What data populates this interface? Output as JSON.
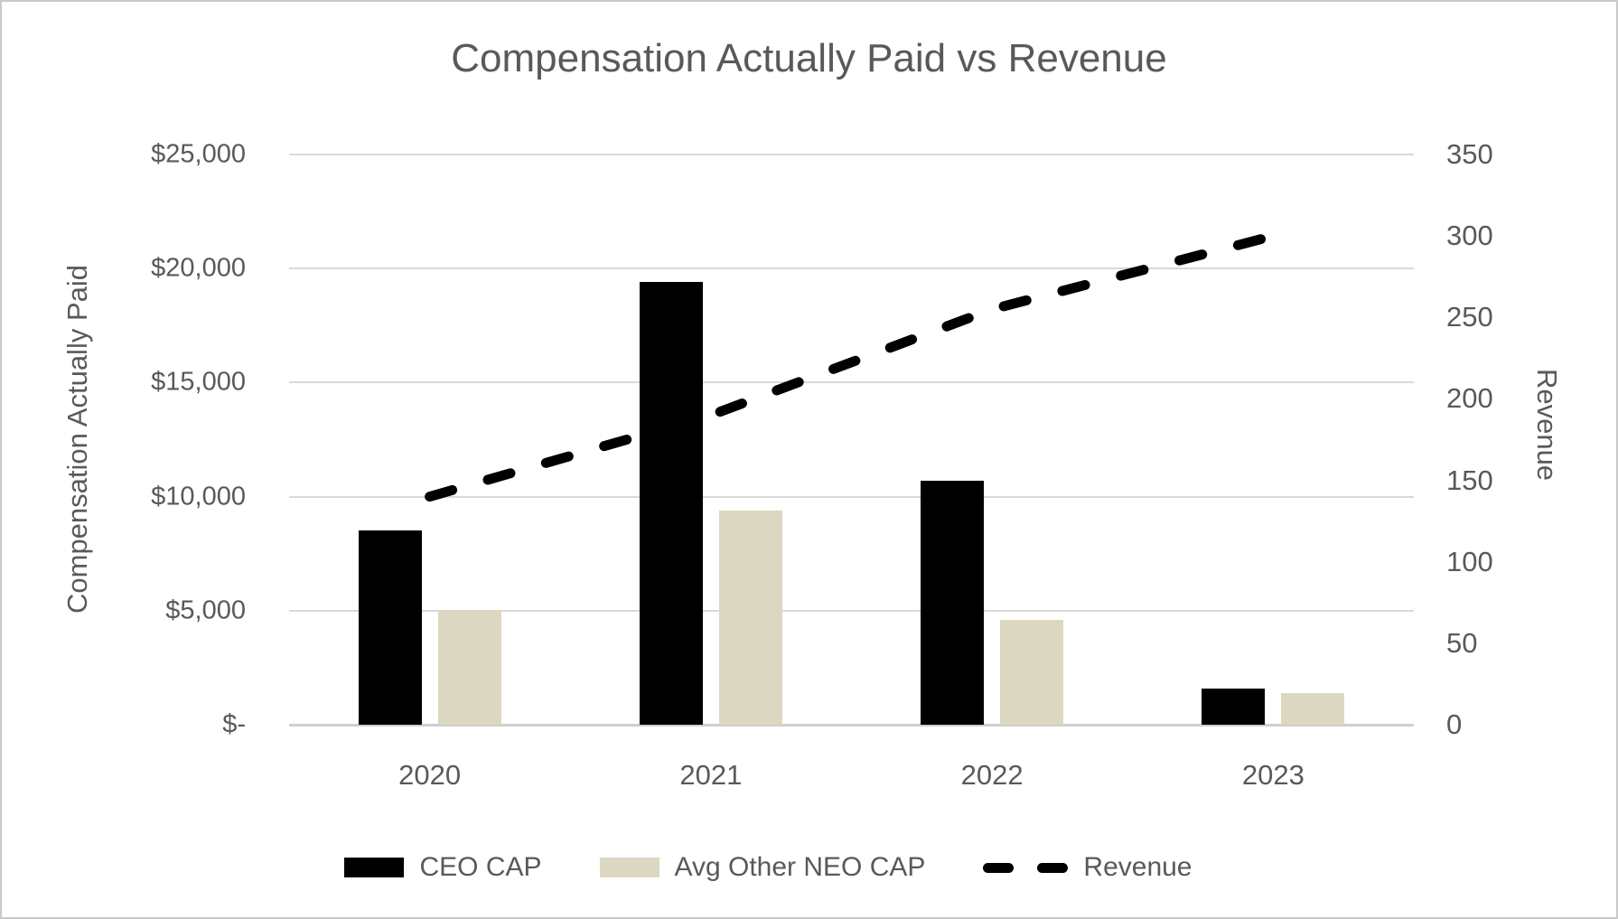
{
  "title": "Compensation Actually Paid vs Revenue",
  "left_axis": {
    "title": "Compensation Actually Paid",
    "tick_labels": [
      "$25,000",
      "$20,000",
      "$15,000",
      "$10,000",
      "$5,000",
      "$-"
    ],
    "min": 0,
    "max": 25000,
    "step": 5000
  },
  "right_axis": {
    "title": "Revenue",
    "tick_labels": [
      "350",
      "300",
      "250",
      "200",
      "150",
      "100",
      "50",
      "0"
    ],
    "min": 0,
    "max": 350,
    "step": 50
  },
  "x_axis": {
    "categories": [
      "2020",
      "2021",
      "2022",
      "2023"
    ]
  },
  "legend": [
    {
      "label": "CEO CAP",
      "type": "bar",
      "color": "#000000"
    },
    {
      "label": "Avg Other NEO CAP",
      "type": "bar",
      "color": "#dcd7c1"
    },
    {
      "label": "Revenue",
      "type": "line",
      "color": "#000000"
    }
  ],
  "colors": {
    "text": "#595959",
    "gridline": "#d9d9d9",
    "axis_line": "#d0cece",
    "ceo_bar": "#000000",
    "neo_bar": "#dcd7c1",
    "revenue_line": "#000000",
    "border": "#c9c9c9"
  },
  "chart_data": {
    "type": "bar",
    "subtype": "grouped bars with dashed line overlay (dual axis)",
    "title": "Compensation Actually Paid vs Revenue",
    "categories": [
      "2020",
      "2021",
      "2022",
      "2023"
    ],
    "series": [
      {
        "name": "CEO CAP",
        "type": "bar",
        "axis": "left",
        "color": "#000000",
        "values": [
          8500,
          19400,
          10700,
          1600
        ]
      },
      {
        "name": "Avg Other NEO CAP",
        "type": "bar",
        "axis": "left",
        "color": "#dcd7c1",
        "values": [
          5050,
          9400,
          4600,
          1400
        ]
      },
      {
        "name": "Revenue",
        "type": "line",
        "line_style": "dashed",
        "axis": "right",
        "color": "#000000",
        "values": [
          140,
          190,
          255,
          300
        ]
      }
    ],
    "xlabel": "",
    "left_ylabel": "Compensation Actually Paid",
    "right_ylabel": "Revenue",
    "left_ylim": [
      0,
      25000
    ],
    "right_ylim": [
      0,
      350
    ],
    "grid": true,
    "legend_position": "bottom"
  }
}
